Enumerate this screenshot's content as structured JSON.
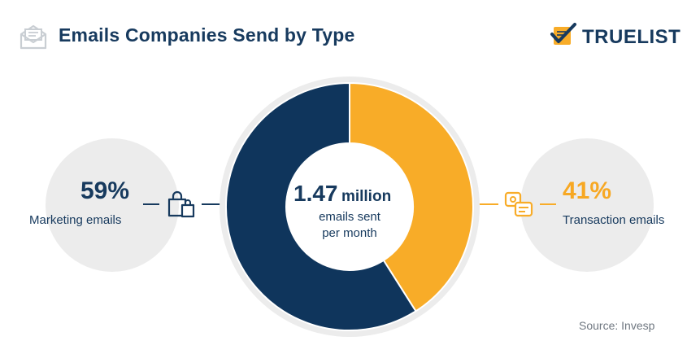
{
  "header": {
    "title": "Emails Companies Send by Type",
    "icon": "envelope-icon"
  },
  "brand": {
    "name": "TRUELIST",
    "icon": "checklist-logo-icon"
  },
  "center": {
    "value": "1.47",
    "unit": "million",
    "line1": "emails sent",
    "line2": "per month"
  },
  "left": {
    "percent": "59%",
    "label": "Marketing emails",
    "icon": "shopping-bag-icon",
    "color": "#0f355c"
  },
  "right": {
    "percent": "41%",
    "label": "Transaction emails",
    "icon": "payment-exchange-icon",
    "color": "#f8ac28"
  },
  "source": "Source: Invesp",
  "chart_data": {
    "type": "pie",
    "donut": true,
    "categories": [
      "Marketing emails",
      "Transaction emails"
    ],
    "values": [
      59,
      41
    ],
    "colors": [
      "#0f355c",
      "#f8ac28"
    ],
    "title": "Emails Companies Send by Type",
    "center_label": "1.47 million emails sent per month",
    "legend": "none"
  }
}
